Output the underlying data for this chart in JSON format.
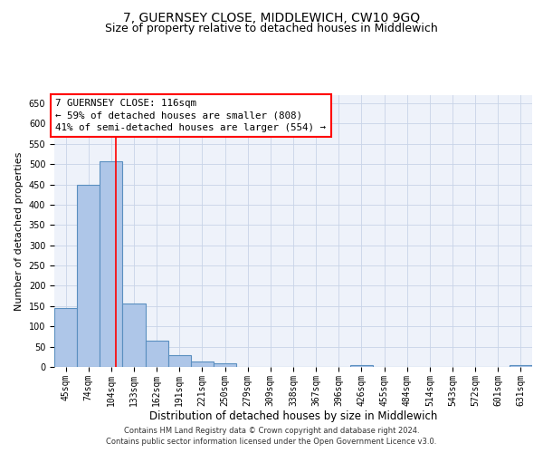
{
  "title": "7, GUERNSEY CLOSE, MIDDLEWICH, CW10 9GQ",
  "subtitle": "Size of property relative to detached houses in Middlewich",
  "xlabel": "Distribution of detached houses by size in Middlewich",
  "ylabel": "Number of detached properties",
  "categories": [
    "45sqm",
    "74sqm",
    "104sqm",
    "133sqm",
    "162sqm",
    "191sqm",
    "221sqm",
    "250sqm",
    "279sqm",
    "309sqm",
    "338sqm",
    "367sqm",
    "396sqm",
    "426sqm",
    "455sqm",
    "484sqm",
    "514sqm",
    "543sqm",
    "572sqm",
    "601sqm",
    "631sqm"
  ],
  "values": [
    145,
    448,
    507,
    157,
    65,
    30,
    13,
    8,
    0,
    0,
    0,
    0,
    0,
    5,
    0,
    0,
    0,
    0,
    0,
    0,
    5
  ],
  "bar_color": "#aec6e8",
  "bar_edge_color": "#5a8fc0",
  "red_line_x": 2.2,
  "annotation_text_line1": "7 GUERNSEY CLOSE: 116sqm",
  "annotation_text_line2": "← 59% of detached houses are smaller (808)",
  "annotation_text_line3": "41% of semi-detached houses are larger (554) →",
  "ylim": [
    0,
    670
  ],
  "yticks": [
    0,
    50,
    100,
    150,
    200,
    250,
    300,
    350,
    400,
    450,
    500,
    550,
    600,
    650
  ],
  "footer_line1": "Contains HM Land Registry data © Crown copyright and database right 2024.",
  "footer_line2": "Contains public sector information licensed under the Open Government Licence v3.0.",
  "background_color": "#eef2fa",
  "grid_color": "#c8d4e8",
  "title_fontsize": 10,
  "subtitle_fontsize": 9,
  "tick_fontsize": 7,
  "ylabel_fontsize": 8,
  "xlabel_fontsize": 8.5,
  "annot_fontsize": 7.8,
  "footer_fontsize": 6.0
}
